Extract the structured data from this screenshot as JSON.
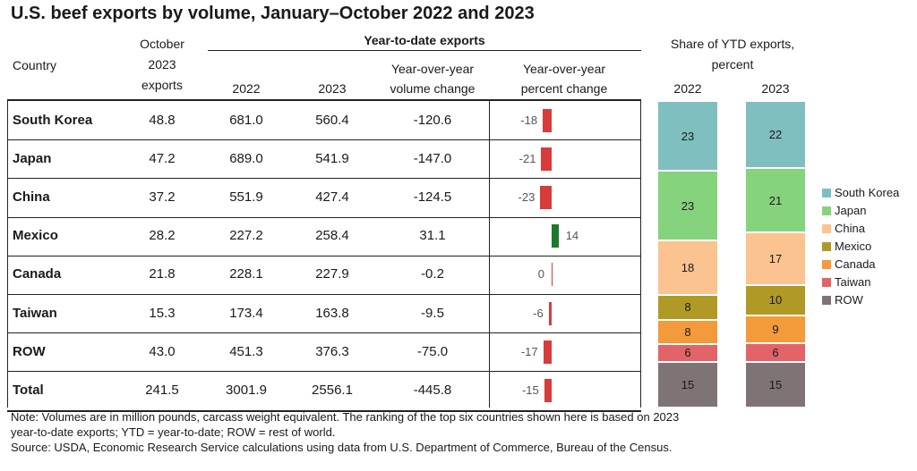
{
  "title": "U.S. beef exports by volume, January–October 2022 and 2023",
  "headers": {
    "country": "Country",
    "october_1": "October",
    "october_2": "2023",
    "october_3": "exports",
    "ytd": "Year-to-date exports",
    "y2022": "2022",
    "y2023": "2023",
    "yoy_vol_1": "Year-over-year",
    "yoy_vol_2": "volume change",
    "yoy_pct_1": "Year-over-year",
    "yoy_pct_2": "percent change",
    "share_1": "Share of YTD exports,",
    "share_2": "percent",
    "share_2022": "2022",
    "share_2023": "2023"
  },
  "rows": [
    {
      "country": "South Korea",
      "oct": "48.8",
      "y2022": "681.0",
      "y2023": "560.4",
      "vol": "-120.6",
      "pct": "-18"
    },
    {
      "country": "Japan",
      "oct": "47.2",
      "y2022": "689.0",
      "y2023": "541.9",
      "vol": "-147.0",
      "pct": "-21"
    },
    {
      "country": "China",
      "oct": "37.2",
      "y2022": "551.9",
      "y2023": "427.4",
      "vol": "-124.5",
      "pct": "-23"
    },
    {
      "country": "Mexico",
      "oct": "28.2",
      "y2022": "227.2",
      "y2023": "258.4",
      "vol": "31.1",
      "pct": "14"
    },
    {
      "country": "Canada",
      "oct": "21.8",
      "y2022": "228.1",
      "y2023": "227.9",
      "vol": "-0.2",
      "pct": "0"
    },
    {
      "country": "Taiwan",
      "oct": "15.3",
      "y2022": "173.4",
      "y2023": "163.8",
      "vol": "-9.5",
      "pct": "-6"
    },
    {
      "country": "ROW",
      "oct": "43.0",
      "y2022": "451.3",
      "y2023": "376.3",
      "vol": "-75.0",
      "pct": "-17"
    },
    {
      "country": "Total",
      "oct": "241.5",
      "y2022": "3001.9",
      "y2023": "2556.1",
      "vol": "-445.8",
      "pct": "-15"
    }
  ],
  "notes": {
    "line1": "Note: Volumes are in million pounds, carcass weight equivalent. The ranking of the top six countries shown here is based on 2023",
    "line2": "year-to-date exports; YTD = year-to-date; ROW = rest of world.",
    "line3": "Source: USDA, Economic Research Service calculations using data from U.S. Department of Commerce, Bureau of the Census."
  },
  "colors": {
    "negative": "#d93a3a",
    "positive": "#1b7a2b",
    "South Korea": "#7fbfbf",
    "Japan": "#86d37e",
    "China": "#fbc38f",
    "Mexico": "#b09a25",
    "Canada": "#f39a3a",
    "Taiwan": "#e26469",
    "ROW": "#7f7475"
  },
  "chart_data": [
    {
      "type": "bar",
      "orientation": "horizontal",
      "title": "Year-over-year percent change",
      "categories": [
        "South Korea",
        "Japan",
        "China",
        "Mexico",
        "Canada",
        "Taiwan",
        "ROW",
        "Total"
      ],
      "values": [
        -18,
        -21,
        -23,
        14,
        0,
        -6,
        -17,
        -15
      ],
      "xlim": [
        -23,
        14
      ]
    },
    {
      "type": "bar",
      "stacked": true,
      "title": "Share of YTD exports, percent",
      "categories": [
        "2022",
        "2023"
      ],
      "series": [
        {
          "name": "South Korea",
          "values": [
            23,
            22
          ]
        },
        {
          "name": "Japan",
          "values": [
            23,
            21
          ]
        },
        {
          "name": "China",
          "values": [
            18,
            17
          ]
        },
        {
          "name": "Mexico",
          "values": [
            8,
            10
          ]
        },
        {
          "name": "Canada",
          "values": [
            8,
            9
          ]
        },
        {
          "name": "Taiwan",
          "values": [
            6,
            6
          ]
        },
        {
          "name": "ROW",
          "values": [
            15,
            15
          ]
        }
      ],
      "ylim": [
        0,
        100
      ],
      "legend": "right"
    }
  ]
}
